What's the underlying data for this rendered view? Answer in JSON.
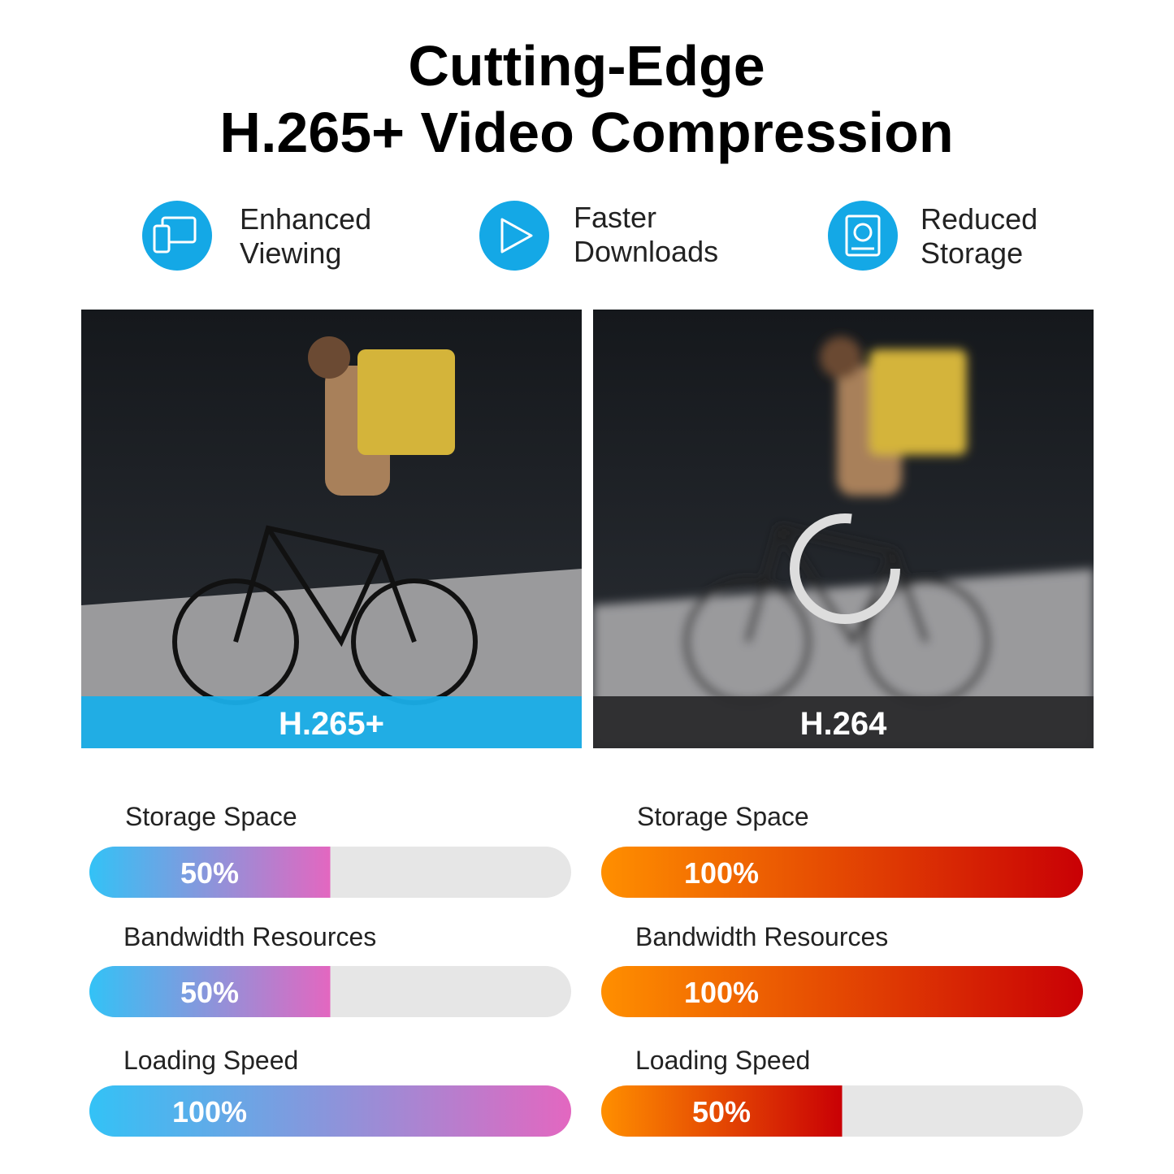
{
  "header": {
    "title_line1": "Cutting-Edge",
    "title_line2": "H.265+ Video Compression"
  },
  "features": [
    {
      "line1": "Enhanced",
      "line2": "Viewing"
    },
    {
      "line1": "Faster",
      "line2": "Downloads"
    },
    {
      "line1": "Reduced",
      "line2": "Storage"
    }
  ],
  "panels": [
    {
      "label": "H.265+",
      "bars": [
        {
          "name": "Storage Space",
          "value": 50,
          "value_label": "50%"
        },
        {
          "name": "Bandwidth Resources",
          "value": 50,
          "value_label": "50%"
        },
        {
          "name": "Loading Speed",
          "value": 100,
          "value_label": "100%"
        }
      ]
    },
    {
      "label": "H.264",
      "bars": [
        {
          "name": "Storage Space",
          "value": 100,
          "value_label": "100%"
        },
        {
          "name": "Bandwidth Resources",
          "value": 100,
          "value_label": "100%"
        },
        {
          "name": "Loading Speed",
          "value": 50,
          "value_label": "50%"
        }
      ]
    }
  ]
}
